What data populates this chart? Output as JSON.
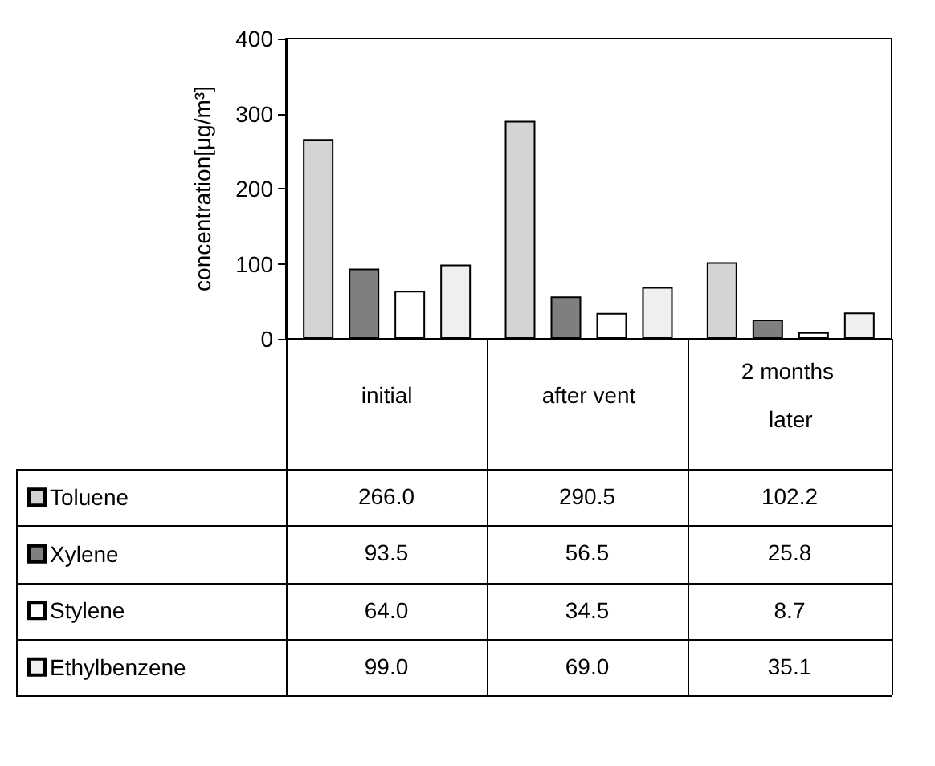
{
  "chart_data": {
    "type": "bar",
    "ylabel": "concentration[μg/m³]",
    "categories": [
      "initial",
      "after vent",
      "2 months later"
    ],
    "series": [
      {
        "name": "Toluene",
        "color": "#d4d4d4",
        "values": [
          266.0,
          290.5,
          102.2
        ],
        "value_labels": [
          "266.0",
          "290.5",
          "102.2"
        ]
      },
      {
        "name": "Xylene",
        "color": "#7f7f7f",
        "values": [
          93.5,
          56.5,
          25.8
        ],
        "value_labels": [
          "93.5",
          "56.5",
          "25.8"
        ]
      },
      {
        "name": "Stylene",
        "color": "#ffffff",
        "values": [
          64.0,
          34.5,
          8.7
        ],
        "value_labels": [
          "64.0",
          "34.5",
          "8.7"
        ]
      },
      {
        "name": "Ethylbenzene",
        "color": "#efefef",
        "values": [
          99.0,
          69.0,
          35.1
        ],
        "value_labels": [
          "99.0",
          "69.0",
          "35.1"
        ]
      }
    ],
    "ylim": [
      0,
      400
    ],
    "yticks": [
      0,
      100,
      200,
      300,
      400
    ],
    "grid": false,
    "legend": "bottom left"
  }
}
